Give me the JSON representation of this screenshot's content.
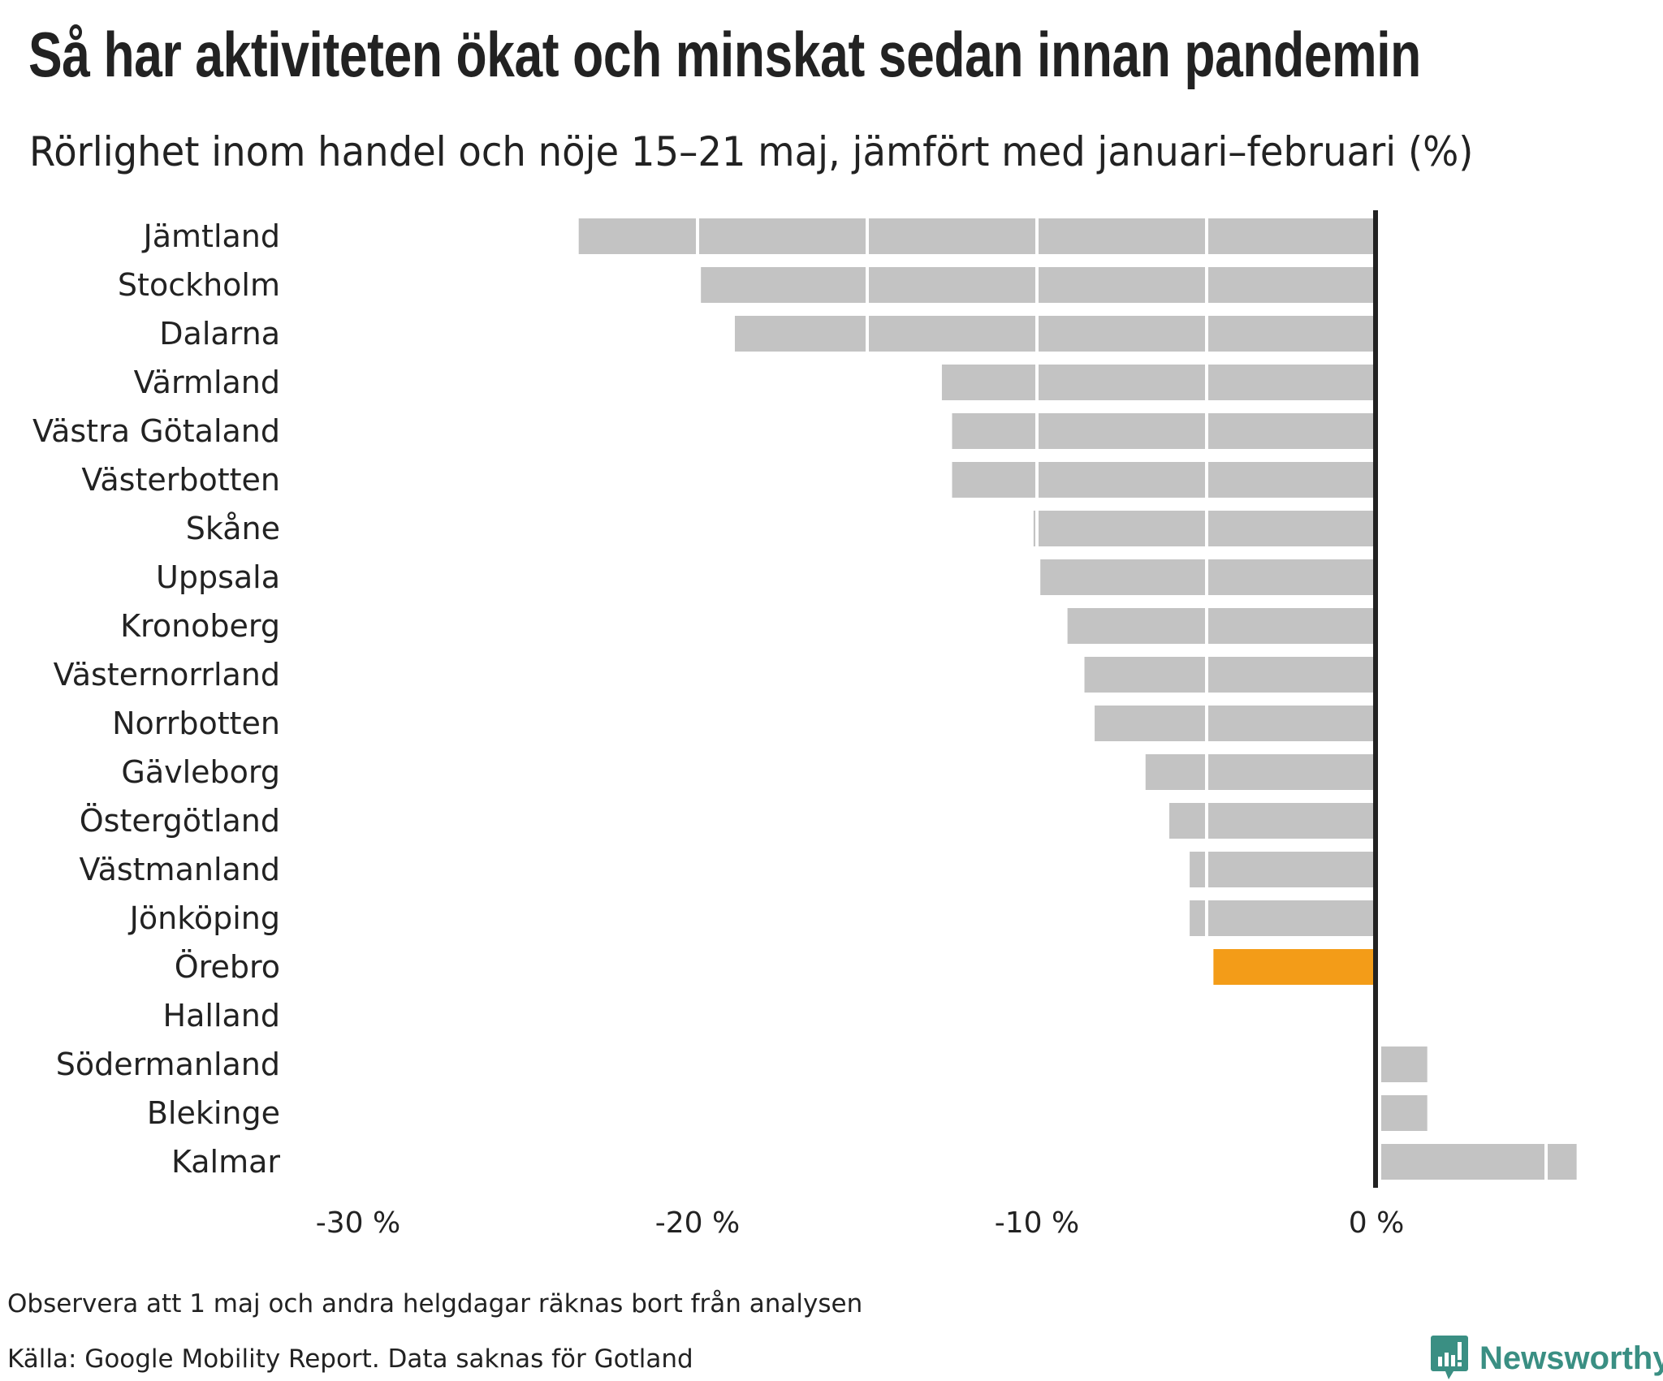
{
  "chart_data": {
    "type": "bar",
    "orientation": "horizontal",
    "title": "Så har aktiviteten ökat och minskat sedan innan pandemin",
    "subtitle": "Rörlighet inom handel och nöje 15–21 maj, jämfört med januari–februari (%)",
    "categories": [
      "Jämtland",
      "Stockholm",
      "Dalarna",
      "Värmland",
      "Västra Götaland",
      "Västerbotten",
      "Skåne",
      "Uppsala",
      "Kronoberg",
      "Västernorrland",
      "Norrbotten",
      "Gävleborg",
      "Östergötland",
      "Västmanland",
      "Jönköping",
      "Örebro",
      "Halland",
      "Södermanland",
      "Blekinge",
      "Kalmar"
    ],
    "values": [
      -23.5,
      -19.9,
      -18.9,
      -12.8,
      -12.5,
      -12.5,
      -10.1,
      -9.9,
      -9.1,
      -8.6,
      -8.3,
      -6.8,
      -6.1,
      -5.5,
      -5.5,
      -4.8,
      0,
      1.5,
      1.5,
      5.9
    ],
    "highlight": "Örebro",
    "colors": {
      "default": "#c3c3c3",
      "highlight": "#f39c18",
      "axis": "#222222"
    },
    "xlim": [
      -30,
      6
    ],
    "xticks": [
      -30,
      -20,
      -10,
      0
    ],
    "xtick_labels": [
      "-30 %",
      "-20 %",
      "-10 %",
      "0 %"
    ],
    "gridlines": [
      -20,
      -15,
      -10,
      -5
    ]
  },
  "notes": {
    "note": "Observera att 1 maj och andra helgdagar räknas bort från analysen",
    "source": "Källa: Google Mobility Report. Data saknas för Gotland"
  },
  "logo": {
    "text": "Newsworthy",
    "color": "#3a8f83"
  }
}
